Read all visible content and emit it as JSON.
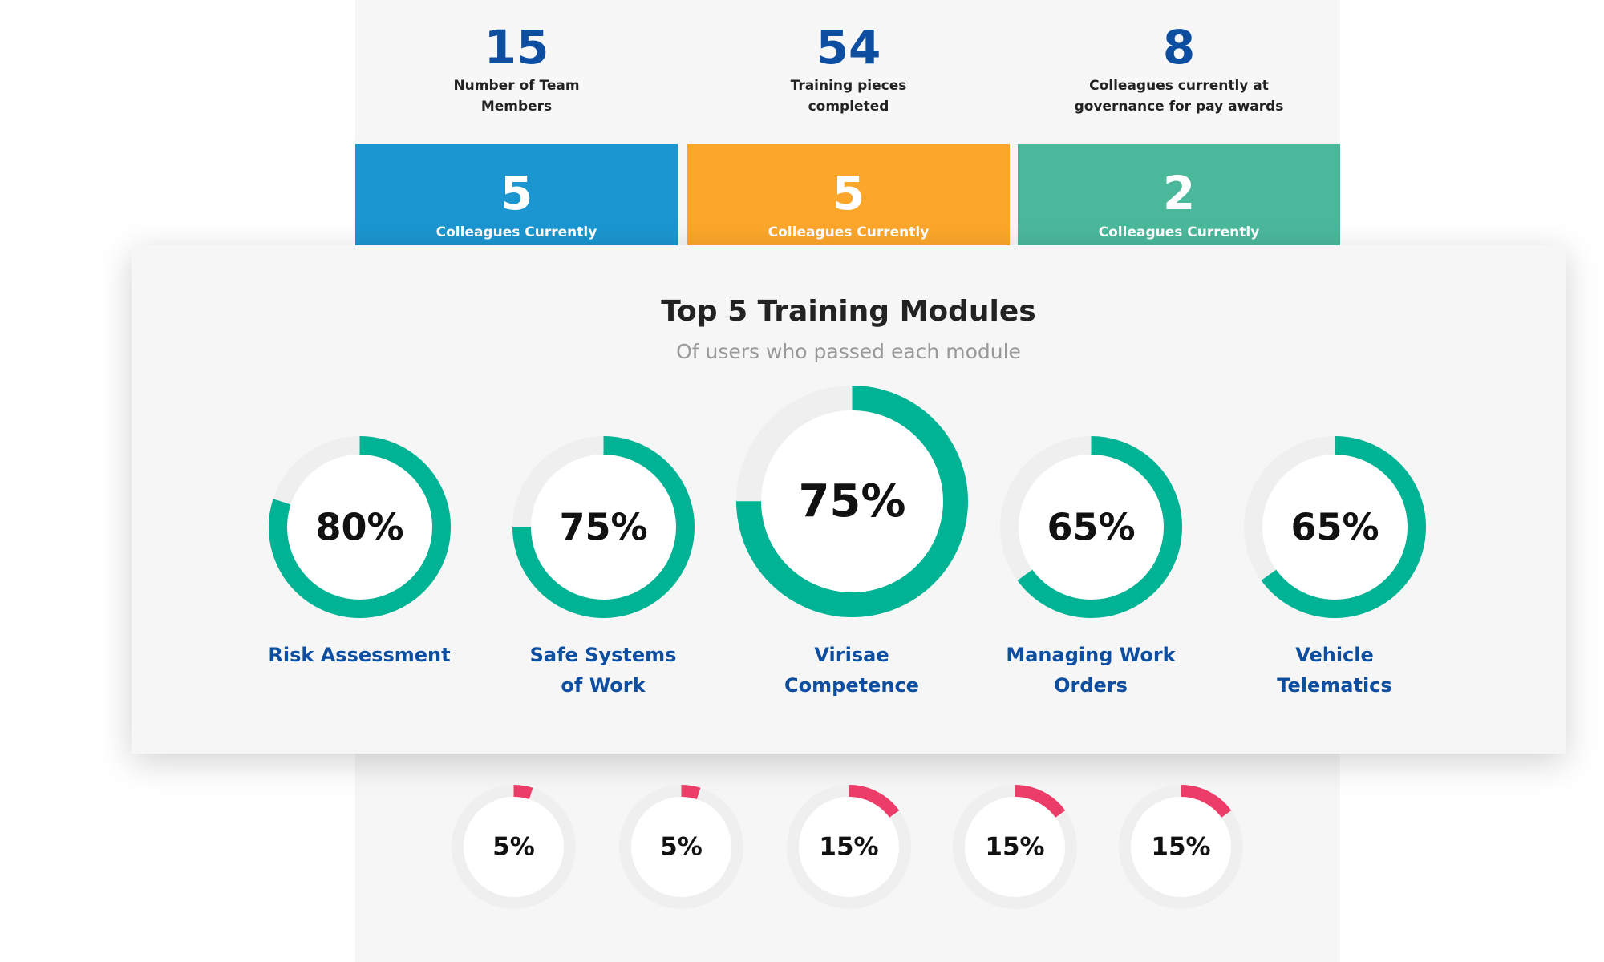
{
  "stats": [
    {
      "value": 15,
      "label_lines": [
        "Number of Team",
        "Members"
      ]
    },
    {
      "value": 54,
      "label_lines": [
        "Training pieces",
        "completed"
      ]
    },
    {
      "value": 8,
      "label_lines": [
        "Colleagues currently at",
        "governance for pay awards"
      ]
    }
  ],
  "status_cards": [
    {
      "value": 5,
      "label": "Colleagues Currently",
      "color": "#1b96d0"
    },
    {
      "value": 5,
      "label": "Colleagues Currently",
      "color": "#fca72b"
    },
    {
      "value": 2,
      "label": "Colleagues Currently",
      "color": "#4bb89c"
    }
  ],
  "panel": {
    "title": "Top 5 Training Modules",
    "subtitle": "Of users who passed each module",
    "color": "#00b394",
    "modules": [
      {
        "value": 80,
        "value_label": "80%",
        "label_lines": [
          "Risk Assessment"
        ]
      },
      {
        "value": 75,
        "value_label": "75%",
        "label_lines": [
          "Safe Systems",
          "of Work"
        ]
      },
      {
        "value": 75,
        "value_label": "75%",
        "label_lines": [
          "Virisae",
          "Competence"
        ]
      },
      {
        "value": 65,
        "value_label": "65%",
        "label_lines": [
          "Managing Work",
          "Orders"
        ]
      },
      {
        "value": 65,
        "value_label": "65%",
        "label_lines": [
          "Vehicle",
          "Telematics"
        ]
      }
    ]
  },
  "small_rings": {
    "color": "#ec3d69",
    "rings": [
      {
        "value": 5,
        "value_label": "5%"
      },
      {
        "value": 5,
        "value_label": "5%"
      },
      {
        "value": 15,
        "value_label": "15%"
      },
      {
        "value": 15,
        "value_label": "15%"
      },
      {
        "value": 15,
        "value_label": "15%"
      }
    ]
  }
}
